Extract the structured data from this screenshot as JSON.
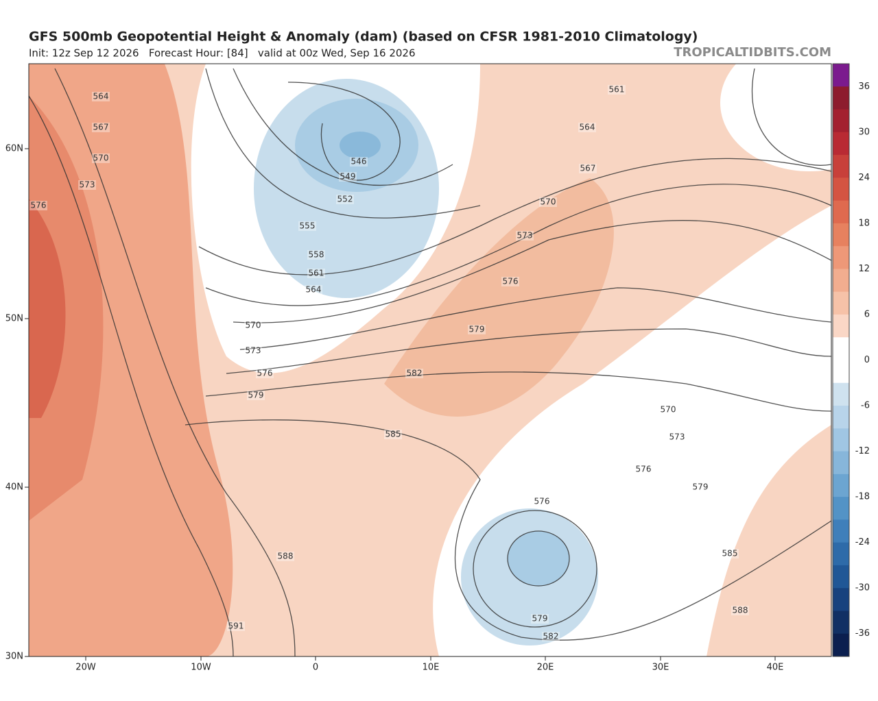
{
  "header": {
    "title": "GFS 500mb Geopotential Height & Anomaly (dam) (based on CFSR 1981-2010 Climatology)",
    "subtitle": "Init: 12z Sep 12 2026   Forecast Hour: [84]   valid at 00z Wed, Sep 16 2026",
    "brand": "TROPICALTIDBITS.COM"
  },
  "map": {
    "lat_labels": [
      "60N",
      "50N",
      "40N",
      "30N"
    ],
    "lon_labels": [
      "20W",
      "10W",
      "0",
      "10E",
      "20E",
      "30E",
      "40E"
    ],
    "contour_labels": [
      "564",
      "567",
      "570",
      "573",
      "576",
      "546",
      "549",
      "552",
      "555",
      "558",
      "561",
      "564",
      "570",
      "573",
      "576",
      "579",
      "582",
      "585",
      "588",
      "591",
      "579",
      "576",
      "573",
      "570",
      "567",
      "564",
      "561",
      "570",
      "573",
      "576",
      "579",
      "576",
      "579",
      "582",
      "585",
      "588"
    ]
  },
  "colorbar": {
    "ticks": [
      "36",
      "30",
      "24",
      "18",
      "12",
      "6",
      "0",
      "-6",
      "-12",
      "-18",
      "-24",
      "-30",
      "-36"
    ]
  }
}
